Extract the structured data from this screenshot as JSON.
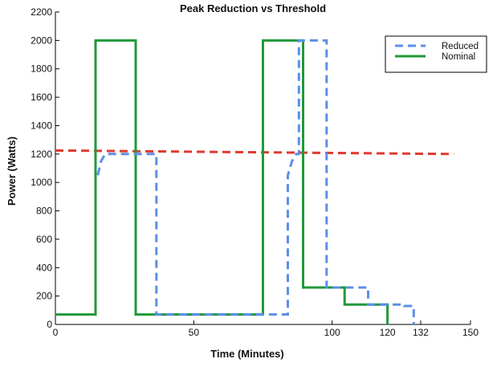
{
  "chart_data": {
    "type": "line",
    "title": "Peak Reduction vs Threshold",
    "xlabel": "Time (Minutes)",
    "ylabel": "Power (Watts)",
    "xlim": [
      0,
      150
    ],
    "ylim": [
      0,
      2200
    ],
    "x_ticks": [
      {
        "value": 0,
        "label": "0"
      },
      {
        "value": 50,
        "label": "50"
      },
      {
        "value": 100,
        "label": "100"
      },
      {
        "value": 120,
        "label": "120"
      },
      {
        "value": 132,
        "label": "132"
      },
      {
        "value": 150,
        "label": "150"
      }
    ],
    "y_ticks": [
      {
        "value": 0,
        "label": "0"
      },
      {
        "value": 200,
        "label": "200"
      },
      {
        "value": 400,
        "label": "400"
      },
      {
        "value": 600,
        "label": "600"
      },
      {
        "value": 800,
        "label": "800"
      },
      {
        "value": 1000,
        "label": "1000"
      },
      {
        "value": 1200,
        "label": "1200"
      },
      {
        "value": 1400,
        "label": "1400"
      },
      {
        "value": 1600,
        "label": "1600"
      },
      {
        "value": 1800,
        "label": "1800"
      },
      {
        "value": 2000,
        "label": "2000"
      },
      {
        "value": 2200,
        "label": "2200"
      }
    ],
    "grid": false,
    "legend_position": "top-right",
    "series": [
      {
        "name": "Reduced",
        "color": "#5b8fe8",
        "style": "dashed",
        "points": [
          [
            15.3,
            1050
          ],
          [
            16.5,
            1150
          ],
          [
            18,
            1200
          ],
          [
            36.5,
            1200
          ],
          [
            36.5,
            70
          ],
          [
            84,
            70
          ],
          [
            84,
            1050
          ],
          [
            85.5,
            1150
          ],
          [
            87,
            1200
          ],
          [
            88,
            1200
          ],
          [
            88,
            2000
          ],
          [
            98,
            2000
          ],
          [
            98,
            260
          ],
          [
            113,
            260
          ],
          [
            113,
            140
          ],
          [
            126,
            140
          ],
          [
            126,
            130
          ],
          [
            129.5,
            130
          ],
          [
            129.5,
            0
          ]
        ]
      },
      {
        "name": "Nominal",
        "color": "#1f9a3a",
        "style": "solid",
        "points": [
          [
            0,
            70
          ],
          [
            14.5,
            70
          ],
          [
            14.5,
            2000
          ],
          [
            29,
            2000
          ],
          [
            29,
            70
          ],
          [
            75,
            70
          ],
          [
            75,
            2000
          ],
          [
            89.5,
            2000
          ],
          [
            89.5,
            260
          ],
          [
            104.5,
            260
          ],
          [
            104.5,
            140
          ],
          [
            120,
            140
          ],
          [
            120,
            0
          ]
        ]
      },
      {
        "color": "#e03a2f",
        "style": "dashed",
        "points": [
          [
            0,
            1225
          ],
          [
            144,
            1200
          ]
        ]
      }
    ]
  }
}
